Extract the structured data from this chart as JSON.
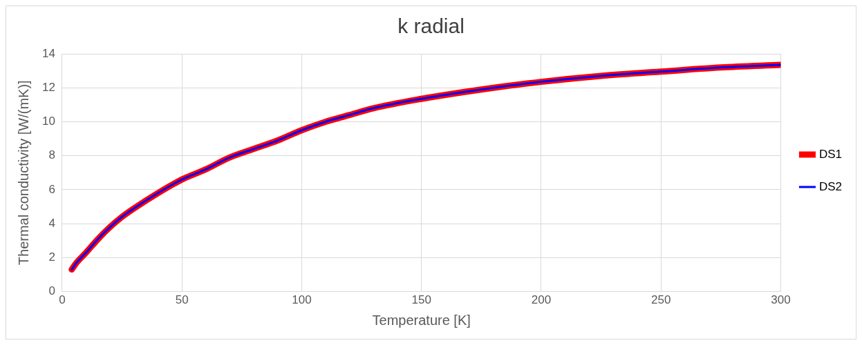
{
  "chart_data": {
    "type": "line",
    "title": "k radial",
    "xlabel": "Temperature [K]",
    "ylabel": "Thermal conductivity [W/(mK)]",
    "x": [
      4,
      6,
      10,
      15,
      20,
      25,
      30,
      40,
      50,
      60,
      70,
      80,
      90,
      100,
      110,
      120,
      130,
      150,
      175,
      200,
      225,
      250,
      275,
      300
    ],
    "series": [
      {
        "name": "DS1",
        "color": "#ff0000",
        "values": [
          1.3,
          1.7,
          2.3,
          3.1,
          3.8,
          4.4,
          4.9,
          5.8,
          6.6,
          7.2,
          7.9,
          8.4,
          8.9,
          9.5,
          10.0,
          10.4,
          10.8,
          11.35,
          11.9,
          12.35,
          12.7,
          12.95,
          13.2,
          13.35
        ]
      },
      {
        "name": "DS2",
        "color": "#0000ff",
        "values": [
          1.3,
          1.7,
          2.3,
          3.1,
          3.8,
          4.4,
          4.9,
          5.8,
          6.6,
          7.2,
          7.9,
          8.4,
          8.9,
          9.5,
          10.0,
          10.4,
          10.8,
          11.35,
          11.9,
          12.35,
          12.7,
          12.95,
          13.2,
          13.35
        ]
      }
    ],
    "xlim": [
      0,
      300
    ],
    "xticks": [
      0,
      50,
      100,
      150,
      200,
      250,
      300
    ],
    "ylim": [
      0,
      14
    ],
    "yticks": [
      0,
      2,
      4,
      6,
      8,
      10,
      12,
      14
    ],
    "grid": true,
    "legend": "right",
    "marker": "none",
    "line_style": "solid"
  }
}
